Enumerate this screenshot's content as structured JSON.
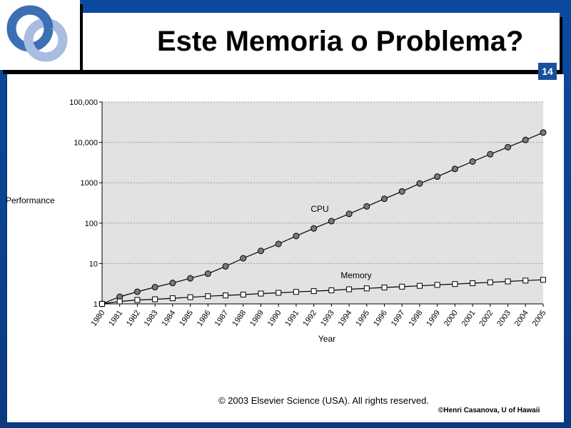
{
  "slide": {
    "title": "Este Memoria o Problema?",
    "page_number": "14",
    "copyright": "© 2003 Elsevier Science (USA). All rights reserved.",
    "author": "©Henri Casanova, U of Hawaii"
  },
  "chart_data": {
    "type": "line",
    "ylabel": "Performance",
    "xlabel": "Year",
    "yscale": "log",
    "ylim": [
      1,
      100000
    ],
    "yticks": [
      "1",
      "10",
      "100",
      "1000",
      "10,000",
      "100,000"
    ],
    "grid": true,
    "x": [
      1980,
      1981,
      1982,
      1983,
      1984,
      1985,
      1986,
      1987,
      1988,
      1989,
      1990,
      1991,
      1992,
      1993,
      1994,
      1995,
      1996,
      1997,
      1998,
      1999,
      2000,
      2001,
      2002,
      2003,
      2004,
      2005
    ],
    "series": [
      {
        "name": "CPU",
        "marker": "circle",
        "values": [
          1.0,
          1.5,
          2.0,
          2.6,
          3.3,
          4.3,
          5.6,
          8.5,
          13.5,
          20.5,
          30.5,
          48,
          74,
          112,
          170,
          260,
          400,
          610,
          960,
          1420,
          2200,
          3350,
          5100,
          7600,
          11500,
          17500
        ]
      },
      {
        "name": "Memory",
        "marker": "square",
        "values": [
          1.0,
          1.15,
          1.25,
          1.3,
          1.38,
          1.46,
          1.55,
          1.62,
          1.7,
          1.8,
          1.88,
          1.98,
          2.07,
          2.17,
          2.3,
          2.42,
          2.55,
          2.67,
          2.8,
          2.95,
          3.1,
          3.25,
          3.42,
          3.6,
          3.78,
          3.95
        ]
      }
    ]
  }
}
